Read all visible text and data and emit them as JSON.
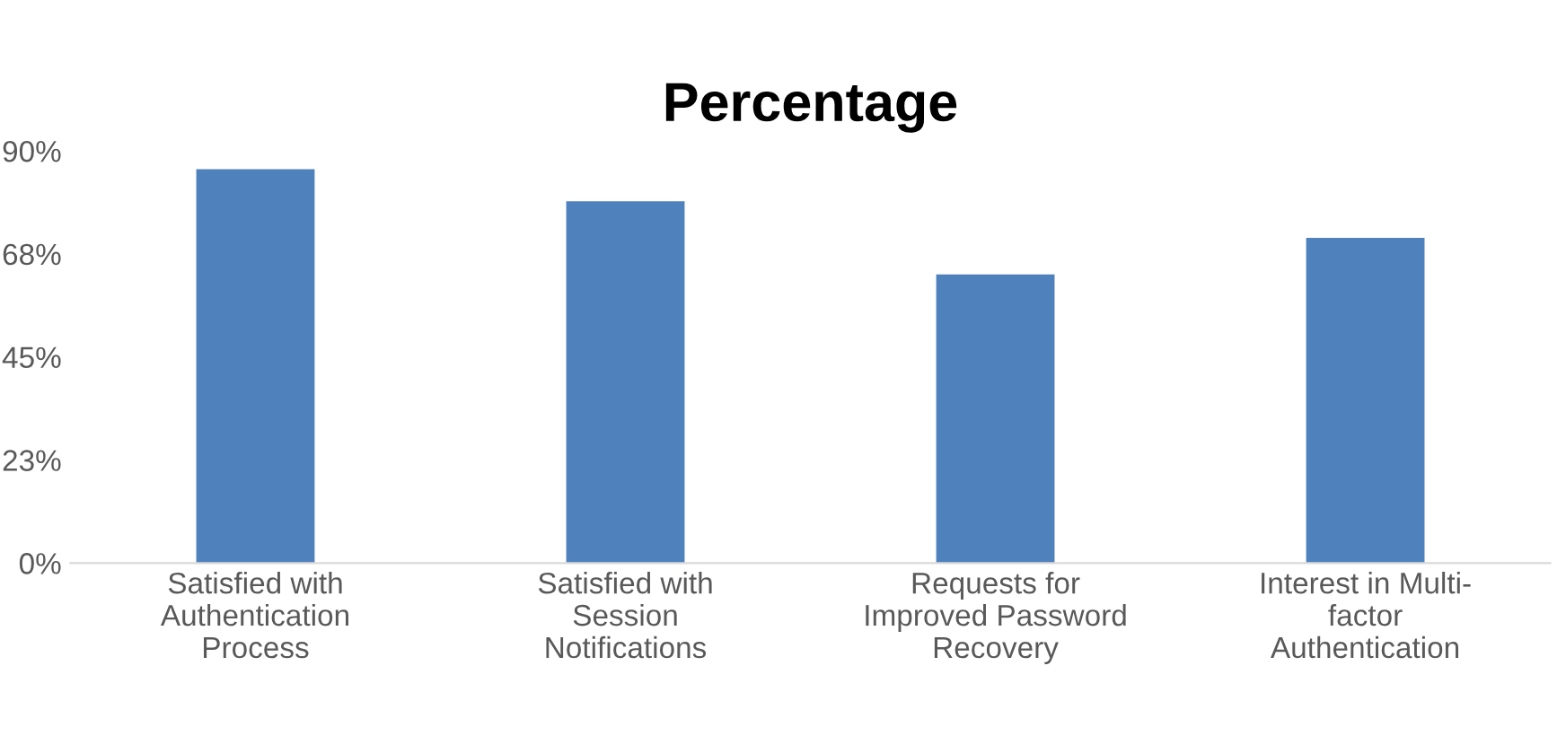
{
  "chart_data": {
    "type": "bar",
    "title": "Percentage",
    "categories": [
      "Satisfied with\nAuthentication\nProcess",
      "Satisfied with\nSession\nNotifications",
      "Requests for\nImproved Password\nRecovery",
      "Interest in Multi-\nfactor\nAuthentication"
    ],
    "values": [
      86,
      79,
      63,
      71
    ],
    "color": "#4f81bd",
    "ylim": [
      0,
      90
    ],
    "yticks": [
      {
        "value": 0,
        "label": "0%"
      },
      {
        "value": 22.5,
        "label": "23%"
      },
      {
        "value": 45,
        "label": "45%"
      },
      {
        "value": 67.5,
        "label": "68%"
      },
      {
        "value": 90,
        "label": "90%"
      }
    ],
    "grid": false
  }
}
